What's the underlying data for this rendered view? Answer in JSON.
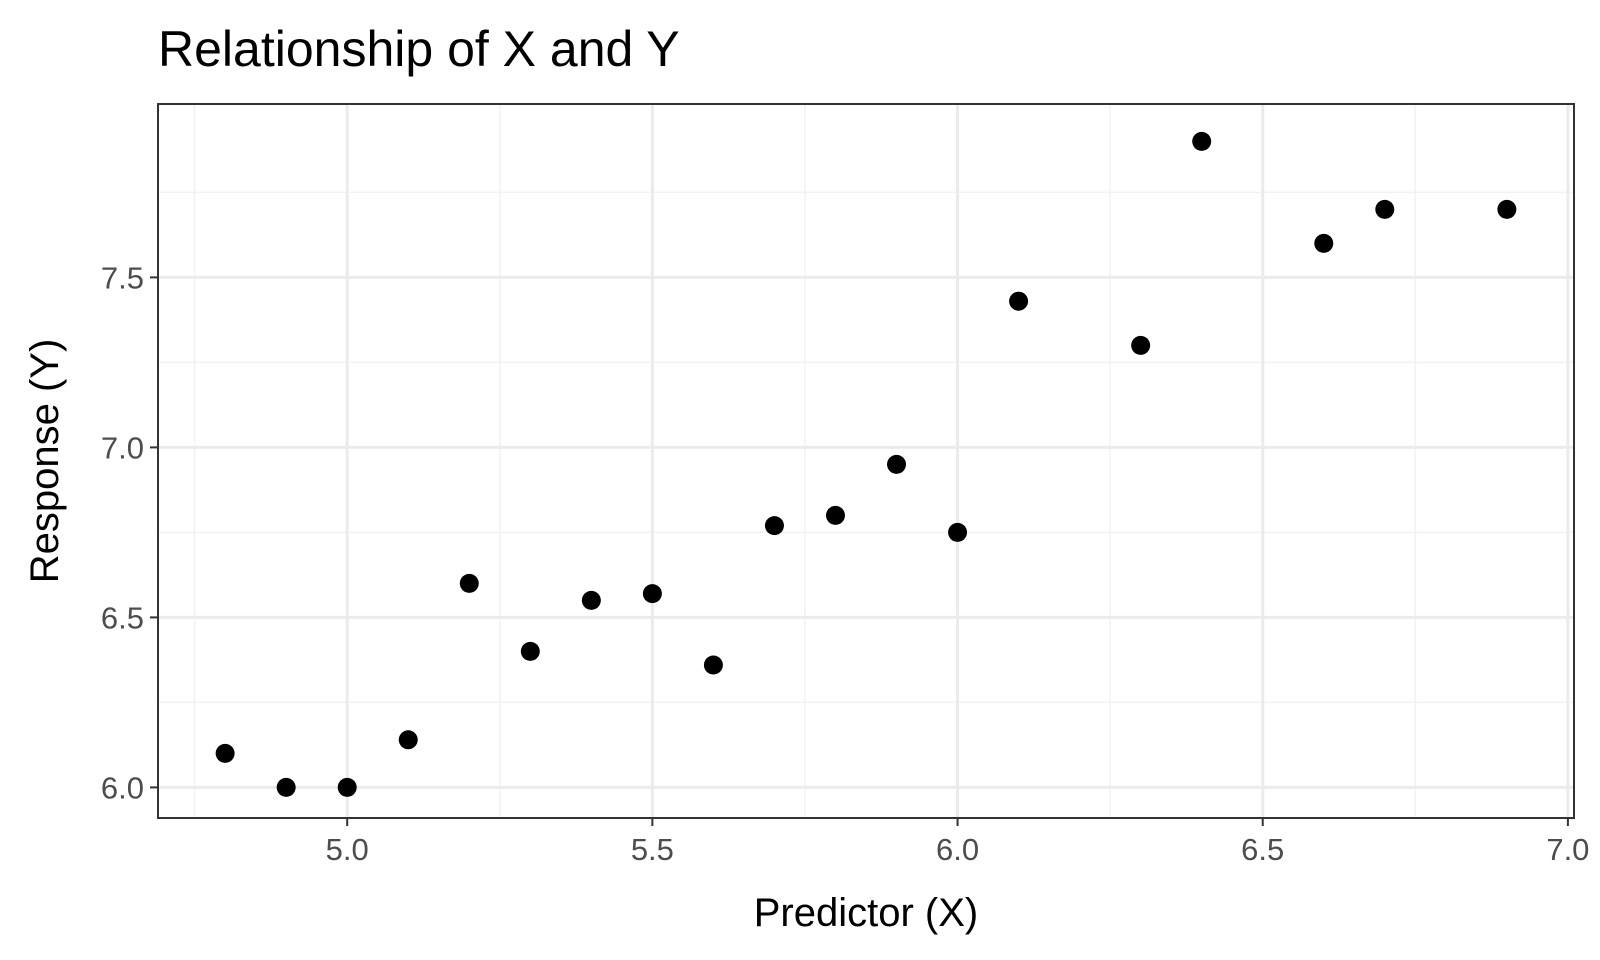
{
  "chart_data": {
    "type": "scatter",
    "title": "Relationship of X and Y",
    "xlabel": "Predictor (X)",
    "ylabel": "Response (Y)",
    "xlim": [
      4.69,
      7.01
    ],
    "ylim": [
      5.91,
      8.01
    ],
    "x_ticks": [
      5.0,
      5.5,
      6.0,
      6.5,
      7.0
    ],
    "x_tick_labels": [
      "5.0",
      "5.5",
      "6.0",
      "6.5",
      "7.0"
    ],
    "y_ticks": [
      6.0,
      6.5,
      7.0,
      7.5
    ],
    "y_tick_labels": [
      "6.0",
      "6.5",
      "7.0",
      "7.5"
    ],
    "x_minor_ticks": [
      4.75,
      5.25,
      5.75,
      6.25,
      6.75
    ],
    "y_minor_ticks": [
      6.25,
      6.75,
      7.25,
      7.75
    ],
    "grid": true,
    "legend": "none",
    "colors": {
      "point": "#000000",
      "grid_major": "#ebebeb",
      "grid_minor": "#f2f2f2",
      "panel_border": "#333333",
      "tick_text": "#4d4d4d"
    },
    "points": [
      {
        "x": 4.8,
        "y": 6.1
      },
      {
        "x": 4.9,
        "y": 6.0
      },
      {
        "x": 5.0,
        "y": 6.0
      },
      {
        "x": 5.1,
        "y": 6.14
      },
      {
        "x": 5.2,
        "y": 6.6
      },
      {
        "x": 5.3,
        "y": 6.4
      },
      {
        "x": 5.4,
        "y": 6.55
      },
      {
        "x": 5.5,
        "y": 6.57
      },
      {
        "x": 5.6,
        "y": 6.36
      },
      {
        "x": 5.7,
        "y": 6.77
      },
      {
        "x": 5.8,
        "y": 6.8
      },
      {
        "x": 5.9,
        "y": 6.95
      },
      {
        "x": 6.0,
        "y": 6.75
      },
      {
        "x": 6.1,
        "y": 7.43
      },
      {
        "x": 6.3,
        "y": 7.3
      },
      {
        "x": 6.4,
        "y": 7.9
      },
      {
        "x": 6.6,
        "y": 7.6
      },
      {
        "x": 6.7,
        "y": 7.7
      },
      {
        "x": 6.9,
        "y": 7.7
      }
    ]
  }
}
